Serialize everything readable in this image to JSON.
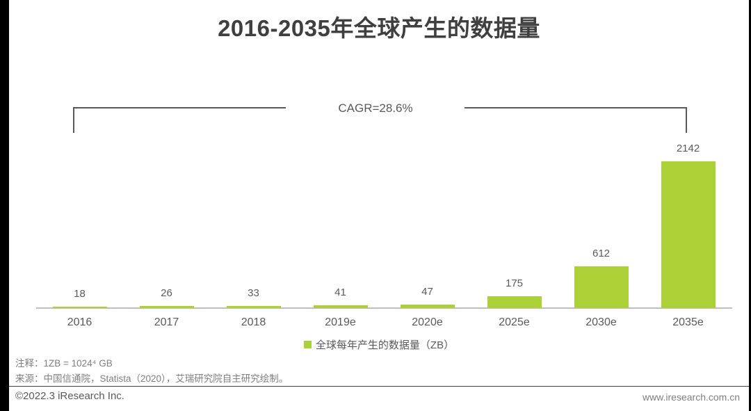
{
  "title": "2016-2035年全球产生的数据量",
  "annotation": {
    "cagr_label": "CAGR=28.6%"
  },
  "chart_data": {
    "type": "bar",
    "title": "2016-2035年全球产生的数据量",
    "categories": [
      "2016",
      "2017",
      "2018",
      "2019e",
      "2020e",
      "2025e",
      "2030e",
      "2035e"
    ],
    "values": [
      18,
      26,
      33,
      41,
      47,
      175,
      612,
      2142
    ],
    "unit": "ZB",
    "xlabel": "",
    "ylabel": "",
    "ylim": [
      0,
      2142
    ],
    "grid": false,
    "legend_position": "bottom",
    "legend": [
      "全球每年产生的数据量（ZB）"
    ],
    "annotations": [
      "CAGR=28.6%"
    ],
    "bar_color": "#acd136"
  },
  "legend": {
    "label": "全球每年产生的数据量（ZB）"
  },
  "notes": {
    "note_line": "注释：1ZB = 1024⁴ GB",
    "source_line": "来源：中国信通院，Statista（2020），艾瑞研究院自主研究绘制。"
  },
  "footer": {
    "copyright": "©2022.3 iResearch Inc.",
    "website": "www.iresearch.com.cn"
  },
  "colors": {
    "accent_green": "#acd136",
    "title_text": "#3f3f3f",
    "label_text": "#595959",
    "note_text": "#7f7f7f",
    "baseline": "#bfbfbf",
    "bracket": "#595959"
  }
}
